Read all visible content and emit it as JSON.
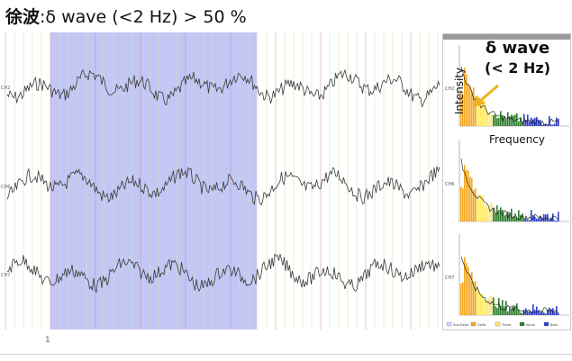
{
  "title": {
    "japanese": "徐波",
    "rest": ":δ wave (<2 Hz) > 50 %"
  },
  "annotation": {
    "line1": "δ wave",
    "line2": "(< 2 Hz)",
    "arrow_color": "#f2b01e"
  },
  "axis": {
    "y_label": "Intensity",
    "x_label": "Frequency"
  },
  "channels": [
    "CH2",
    "CH6",
    "CH7"
  ],
  "page_number": "1",
  "colors": {
    "highlight": "#b7bdf3",
    "trace": "#3a3a3a",
    "grid_green": "#cfe6a8",
    "grid_red": "#c98a8a",
    "spec_orange": "#f5a81e",
    "spec_yellow": "#ffe96a",
    "spec_green": "#2e7d2e",
    "spec_blue": "#2c3fc8"
  },
  "spectrum_legend": [
    "Sub-Delta",
    "Delta",
    "Theta",
    "Alpha",
    "Beta"
  ]
}
